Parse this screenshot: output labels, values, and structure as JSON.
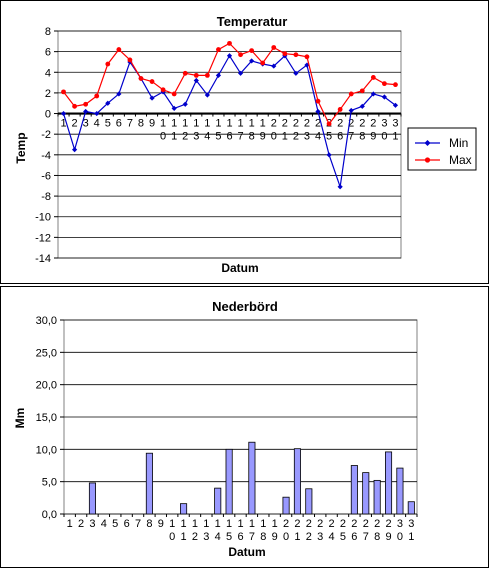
{
  "chart_data": [
    {
      "type": "line",
      "title": "Temperatur",
      "xlabel": "Datum",
      "ylabel": "Temp",
      "ylim": [
        -14,
        8
      ],
      "yticks": [
        8,
        6,
        4,
        2,
        0,
        -2,
        -4,
        -6,
        -8,
        -10,
        -12,
        -14
      ],
      "categories": [
        "1",
        "2",
        "3",
        "4",
        "5",
        "6",
        "7",
        "8",
        "9",
        "10",
        "11",
        "12",
        "13",
        "14",
        "15",
        "16",
        "17",
        "18",
        "19",
        "20",
        "21",
        "22",
        "23",
        "24",
        "25",
        "26",
        "27",
        "28",
        "29",
        "30",
        "31"
      ],
      "grid": true,
      "legend_position": "right",
      "series": [
        {
          "name": "Min",
          "color": "#0000cc",
          "marker": "diamond",
          "values": [
            0.0,
            -3.5,
            0.2,
            0.0,
            1.0,
            1.9,
            5.0,
            3.4,
            1.5,
            2.1,
            0.5,
            0.9,
            3.2,
            1.8,
            3.7,
            5.6,
            3.9,
            5.1,
            4.8,
            4.6,
            5.6,
            3.9,
            4.7,
            0.2,
            -4.0,
            -7.1,
            0.3,
            0.7,
            1.9,
            1.6,
            0.8
          ]
        },
        {
          "name": "Max",
          "color": "#ff0000",
          "marker": "circle",
          "values": [
            2.1,
            0.7,
            0.9,
            1.7,
            4.8,
            6.2,
            5.2,
            3.4,
            3.1,
            2.3,
            1.9,
            3.9,
            3.7,
            3.7,
            6.2,
            6.8,
            5.7,
            6.1,
            4.9,
            6.4,
            5.8,
            5.7,
            5.5,
            1.2,
            -1.0,
            0.4,
            1.9,
            2.2,
            3.5,
            2.9,
            2.8
          ]
        }
      ]
    },
    {
      "type": "bar",
      "title": "Nederbörd",
      "xlabel": "Datum",
      "ylabel": "Mm",
      "ylim": [
        0,
        30
      ],
      "yticks": [
        "0,0",
        "5,0",
        "10,0",
        "15,0",
        "20,0",
        "25,0",
        "30,0"
      ],
      "categories": [
        "1",
        "2",
        "3",
        "4",
        "5",
        "6",
        "7",
        "8",
        "9",
        "10",
        "11",
        "12",
        "13",
        "14",
        "15",
        "16",
        "17",
        "18",
        "19",
        "20",
        "21",
        "22",
        "23",
        "24",
        "25",
        "26",
        "27",
        "28",
        "29",
        "30",
        "31"
      ],
      "grid": true,
      "series": [
        {
          "color": "#9999ff",
          "values": [
            0,
            0,
            4.8,
            0,
            0,
            0,
            0,
            9.4,
            0,
            0,
            1.6,
            0,
            0,
            4.0,
            10.0,
            0,
            11.1,
            0,
            0,
            2.6,
            10.1,
            3.9,
            0,
            0,
            0,
            7.5,
            6.4,
            5.2,
            9.6,
            7.1,
            1.9
          ]
        }
      ]
    }
  ]
}
